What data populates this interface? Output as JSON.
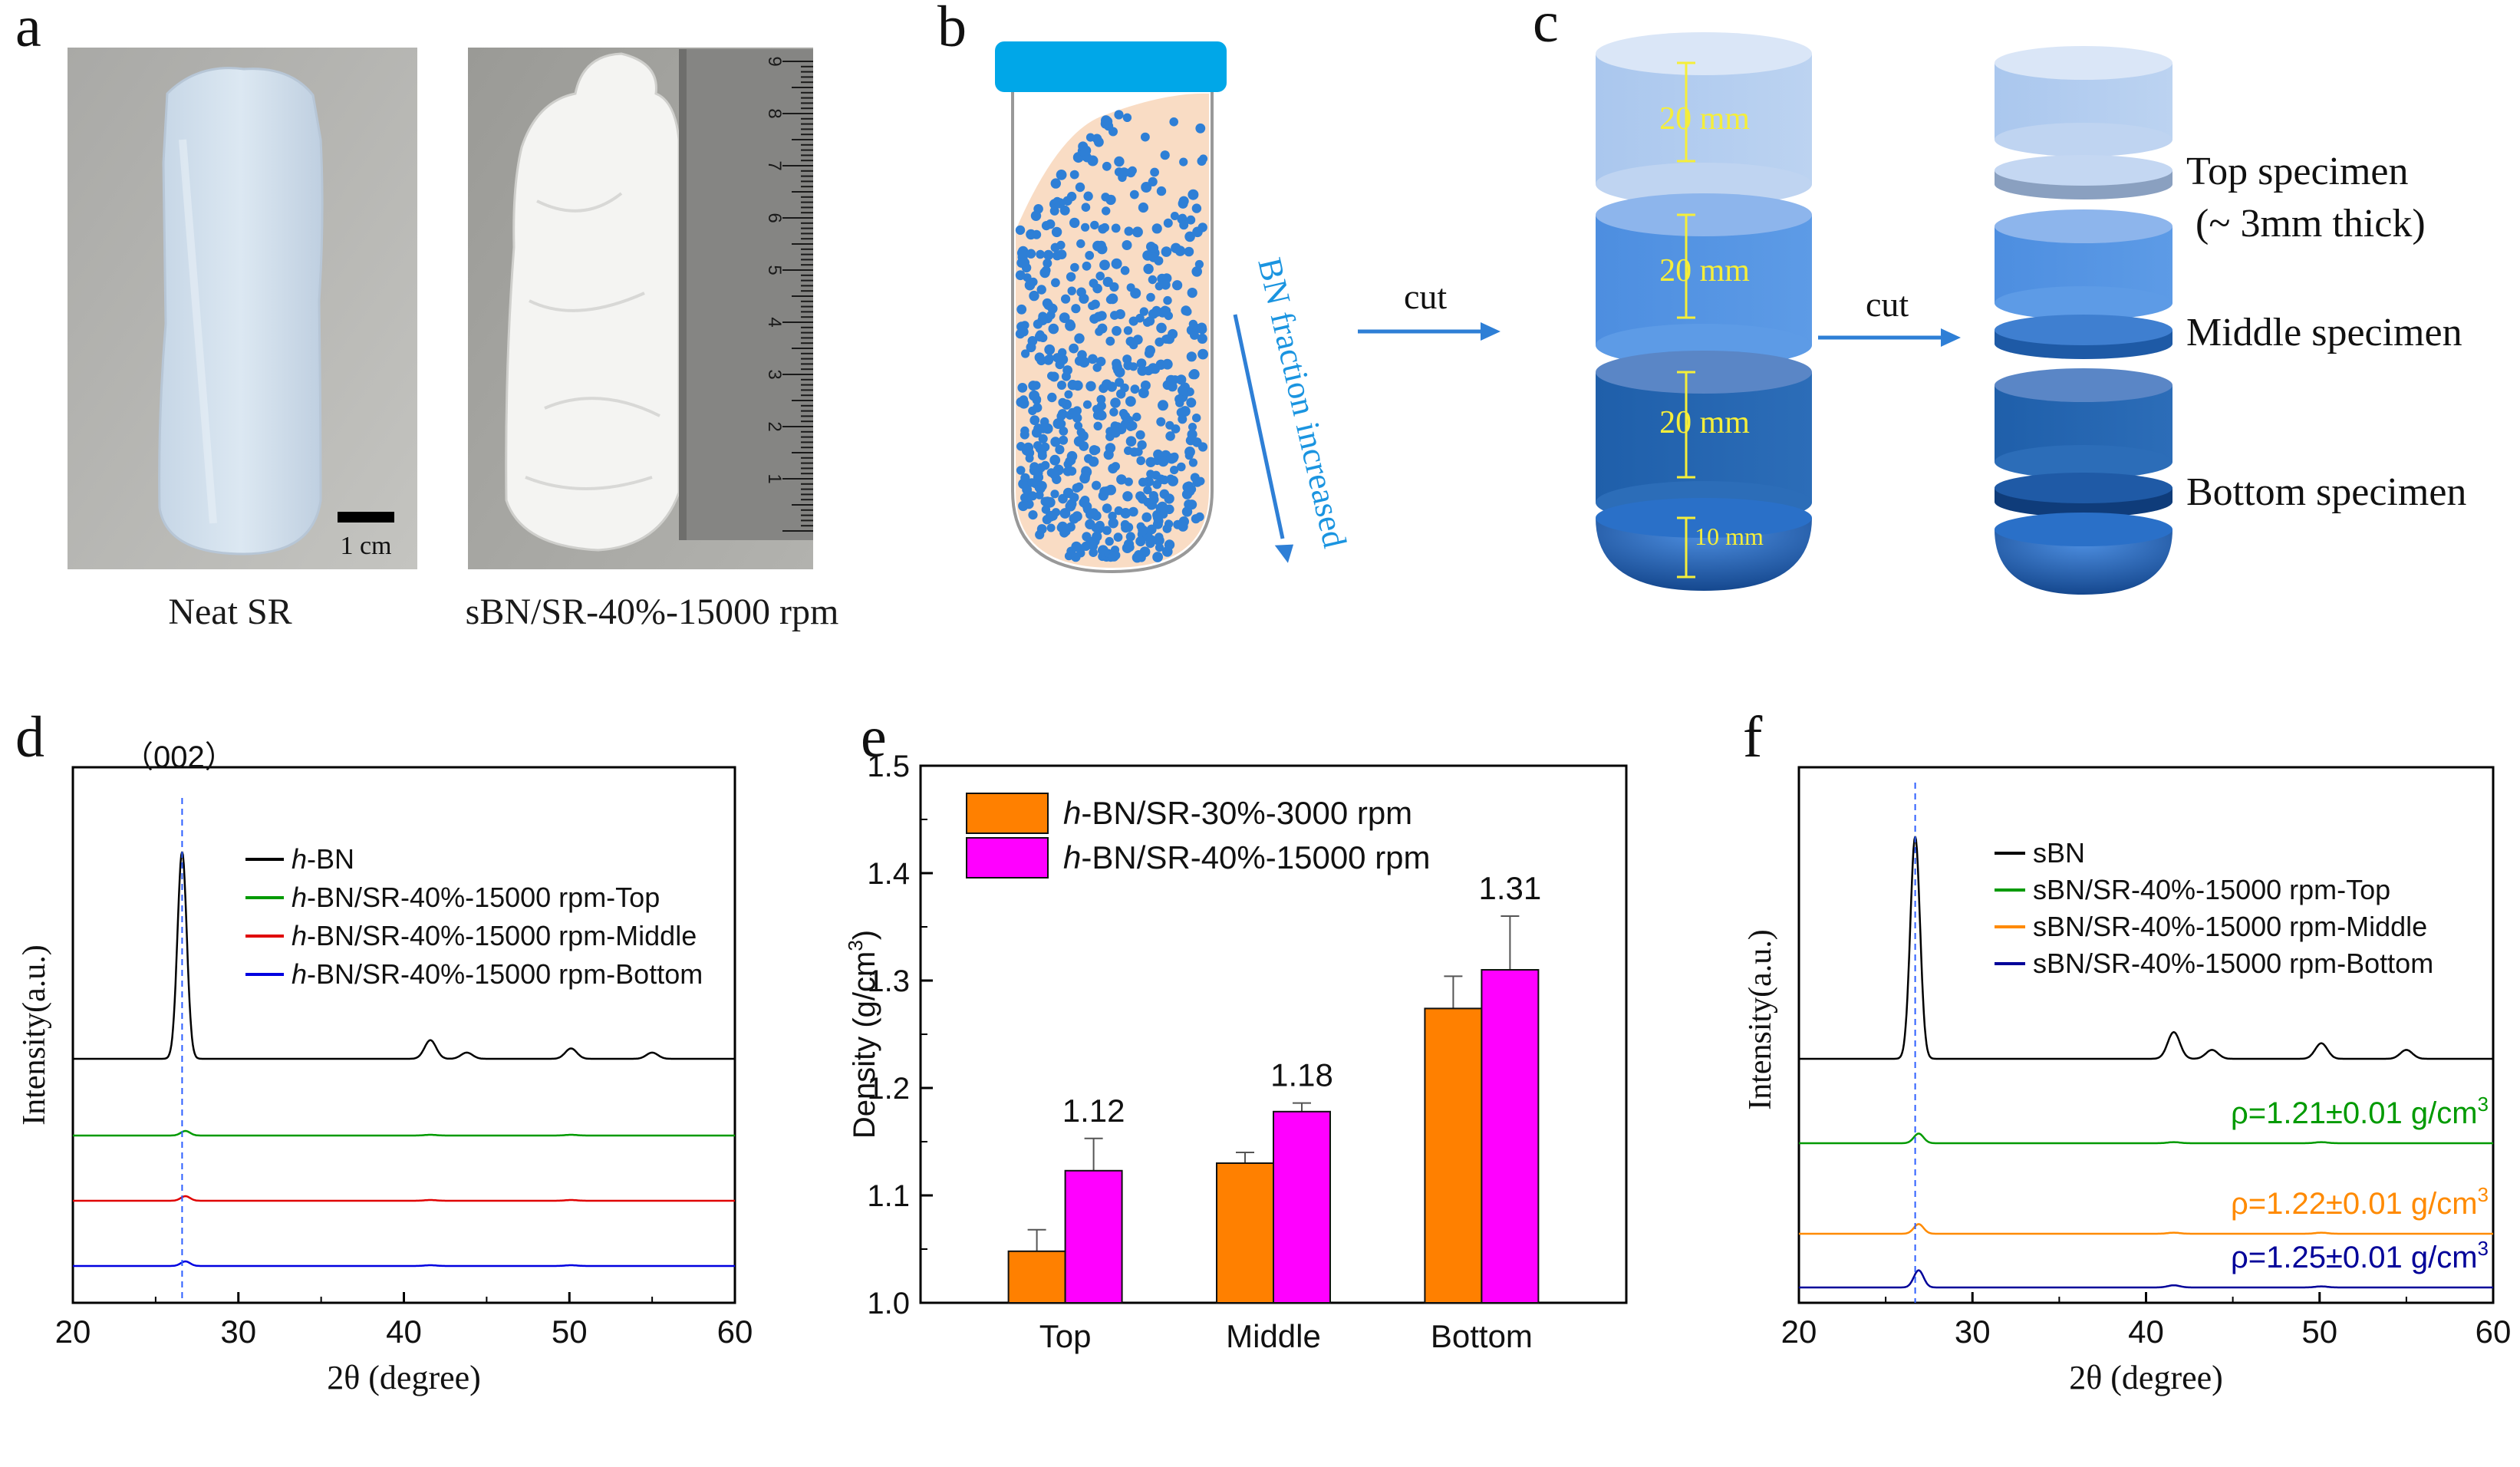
{
  "panels": {
    "a": "a",
    "b": "b",
    "c": "c",
    "d": "d",
    "e": "e",
    "f": "f"
  },
  "panel_a": {
    "left_caption": "Neat SR",
    "right_caption": "sBN/SR-40%-15000 rpm",
    "scale_bar_label": "1 cm",
    "ruler_numbers": [
      "1",
      "2",
      "3",
      "4",
      "5",
      "6",
      "7",
      "8",
      "9"
    ]
  },
  "panel_b": {
    "gradient_label": "BN fraction increased",
    "cut_label": "cut"
  },
  "panel_c": {
    "cut_label": "cut",
    "segment_labels": [
      "20 mm",
      "20 mm",
      "20 mm",
      "10 mm"
    ],
    "specimens": [
      "Top specimen",
      "(~ 3mm thick)",
      "Middle specimen",
      "Bottom specimen"
    ]
  },
  "chart_data": [
    {
      "panel": "d",
      "type": "line",
      "xlabel": "2θ (degree)",
      "ylabel": "Intensity(a.u.)",
      "xlim": [
        20,
        60
      ],
      "xticks": [
        "20",
        "30",
        "40",
        "50",
        "60"
      ],
      "peak_annotation": "（002）",
      "peak_position": 26.6,
      "series": [
        {
          "name_prefix": "h",
          "name": "-BN",
          "color": "#000000",
          "baseline": 3,
          "peaks": [
            [
              26.6,
              100
            ],
            [
              41.6,
              9
            ],
            [
              43.8,
              3
            ],
            [
              50.1,
              5
            ],
            [
              55.0,
              3
            ]
          ]
        },
        {
          "name_prefix": "h",
          "name": "-BN/SR-40%-15000 rpm-Top",
          "color": "#009a00",
          "baseline": 2,
          "peaks": [
            [
              26.8,
              6
            ],
            [
              41.6,
              1
            ],
            [
              50.1,
              1
            ]
          ]
        },
        {
          "name_prefix": "h",
          "name": "-BN/SR-40%-15000 rpm-Middle",
          "color": "#e00000",
          "baseline": 1,
          "peaks": [
            [
              26.8,
              6
            ],
            [
              41.6,
              1
            ],
            [
              50.1,
              1
            ]
          ]
        },
        {
          "name_prefix": "h",
          "name": "-BN/SR-40%-15000 rpm-Bottom",
          "color": "#0000e0",
          "baseline": 0,
          "peaks": [
            [
              26.8,
              6
            ],
            [
              41.6,
              1
            ],
            [
              50.1,
              1
            ]
          ]
        }
      ]
    },
    {
      "panel": "e",
      "type": "bar",
      "ylabel": "Density (g/cm",
      "ylabel_sup": "3",
      "ylabel_end": ")",
      "categories": [
        "Top",
        "Middle",
        "Bottom"
      ],
      "ylim": [
        1.0,
        1.5
      ],
      "yticks": [
        "1.0",
        "1.1",
        "1.2",
        "1.3",
        "1.4",
        "1.5"
      ],
      "series": [
        {
          "name_prefix": "h",
          "name": "-BN/SR-30%-3000 rpm",
          "color": "#ff8000",
          "values": [
            1.048,
            1.13,
            1.274
          ],
          "errors": [
            0.02,
            0.01,
            0.03
          ]
        },
        {
          "name_prefix": "h",
          "name": "-BN/SR-40%-15000 rpm",
          "color": "#ff00ff",
          "values": [
            1.123,
            1.178,
            1.31
          ],
          "errors": [
            0.03,
            0.008,
            0.05
          ]
        }
      ],
      "data_labels": [
        "1.12",
        "1.18",
        "1.31"
      ]
    },
    {
      "panel": "f",
      "type": "line",
      "xlabel": "2θ (degree)",
      "ylabel": "Intensity(a.u.)",
      "xlim": [
        20,
        60
      ],
      "xticks": [
        "20",
        "30",
        "40",
        "50",
        "60"
      ],
      "peak_position": 26.7,
      "series": [
        {
          "name": "sBN",
          "color": "#000000",
          "baseline": 3,
          "peaks": [
            [
              26.7,
              100
            ],
            [
              41.6,
              12
            ],
            [
              43.8,
              4
            ],
            [
              50.1,
              7
            ],
            [
              55.0,
              4
            ]
          ],
          "annotation": ""
        },
        {
          "name": "sBN/SR-40%-15000 rpm-Top",
          "color": "#009a00",
          "baseline": 2,
          "peaks": [
            [
              26.9,
              9
            ],
            [
              41.6,
              1
            ],
            [
              50.1,
              1
            ]
          ],
          "annotation": "ρ=1.21±0.01 g/cm"
        },
        {
          "name": "sBN/SR-40%-15000 rpm-Middle",
          "color": "#ff8a00",
          "baseline": 1,
          "peaks": [
            [
              26.9,
              9
            ],
            [
              41.6,
              1
            ],
            [
              50.1,
              1
            ]
          ],
          "annotation": "ρ=1.22±0.01 g/cm"
        },
        {
          "name": "sBN/SR-40%-15000 rpm-Bottom",
          "color": "#000099",
          "baseline": 0,
          "peaks": [
            [
              26.9,
              16
            ],
            [
              41.6,
              2
            ],
            [
              50.1,
              1
            ]
          ],
          "annotation": "ρ=1.25±0.01 g/cm"
        }
      ],
      "annotation_sup": "3"
    }
  ]
}
